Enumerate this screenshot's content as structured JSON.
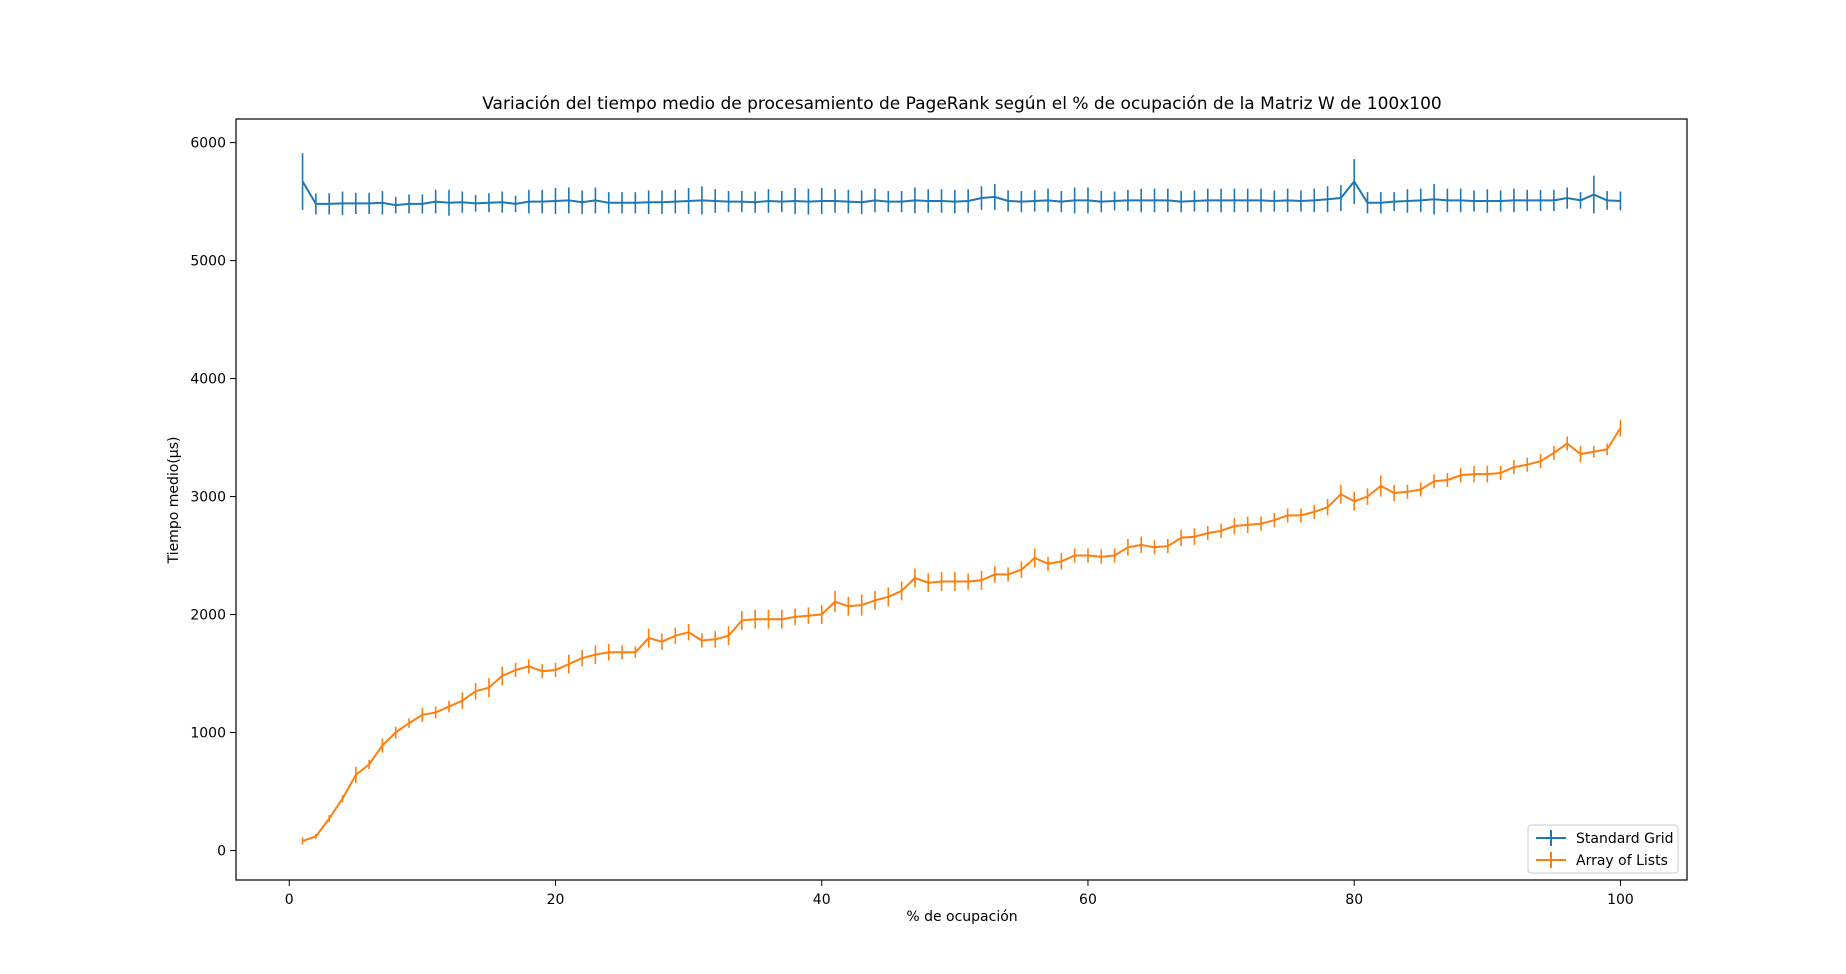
{
  "chart_data": {
    "type": "line",
    "title": "Variación del tiempo medio de procesamiento de PageRank según el % de ocupación de la Matriz W de 100x100",
    "xlabel": "% de ocupación",
    "ylabel": "Tiempo medio(μs)",
    "xlim": [
      -4,
      105
    ],
    "ylim": [
      -250,
      6200
    ],
    "xticks": [
      0,
      20,
      40,
      60,
      80,
      100
    ],
    "yticks": [
      0,
      1000,
      2000,
      3000,
      4000,
      5000,
      6000
    ],
    "grid": false,
    "legend_position": "lower-right",
    "x": [
      1,
      2,
      3,
      4,
      5,
      6,
      7,
      8,
      9,
      10,
      11,
      12,
      13,
      14,
      15,
      16,
      17,
      18,
      19,
      20,
      21,
      22,
      23,
      24,
      25,
      26,
      27,
      28,
      29,
      30,
      31,
      32,
      33,
      34,
      35,
      36,
      37,
      38,
      39,
      40,
      41,
      42,
      43,
      44,
      45,
      46,
      47,
      48,
      49,
      50,
      51,
      52,
      53,
      54,
      55,
      56,
      57,
      58,
      59,
      60,
      61,
      62,
      63,
      64,
      65,
      66,
      67,
      68,
      69,
      70,
      71,
      72,
      73,
      74,
      75,
      76,
      77,
      78,
      79,
      80,
      81,
      82,
      83,
      84,
      85,
      86,
      87,
      88,
      89,
      90,
      91,
      92,
      93,
      94,
      95,
      96,
      97,
      98,
      99,
      100
    ],
    "series": [
      {
        "name": "Standard Grid",
        "color": "#1f77b4",
        "values": [
          5670,
          5480,
          5480,
          5485,
          5485,
          5485,
          5490,
          5470,
          5480,
          5480,
          5500,
          5490,
          5495,
          5485,
          5490,
          5495,
          5480,
          5500,
          5500,
          5505,
          5510,
          5495,
          5510,
          5490,
          5490,
          5490,
          5495,
          5495,
          5500,
          5505,
          5510,
          5505,
          5500,
          5500,
          5495,
          5505,
          5500,
          5505,
          5500,
          5505,
          5505,
          5500,
          5495,
          5510,
          5500,
          5500,
          5510,
          5505,
          5505,
          5500,
          5505,
          5530,
          5540,
          5505,
          5500,
          5505,
          5510,
          5500,
          5510,
          5510,
          5500,
          5505,
          5510,
          5510,
          5510,
          5510,
          5500,
          5505,
          5510,
          5510,
          5510,
          5510,
          5510,
          5505,
          5510,
          5505,
          5510,
          5520,
          5530,
          5670,
          5490,
          5490,
          5500,
          5505,
          5510,
          5520,
          5510,
          5510,
          5505,
          5505,
          5505,
          5510,
          5510,
          5510,
          5510,
          5530,
          5510,
          5560,
          5510,
          5505
        ],
        "errors": [
          240,
          90,
          90,
          100,
          90,
          90,
          100,
          70,
          80,
          80,
          100,
          110,
          90,
          70,
          80,
          90,
          70,
          100,
          100,
          110,
          110,
          100,
          110,
          90,
          90,
          90,
          100,
          100,
          100,
          110,
          120,
          100,
          90,
          90,
          90,
          100,
          90,
          110,
          110,
          110,
          100,
          100,
          100,
          100,
          90,
          90,
          110,
          100,
          100,
          100,
          100,
          100,
          110,
          90,
          90,
          90,
          100,
          90,
          110,
          110,
          90,
          80,
          90,
          100,
          100,
          100,
          90,
          90,
          100,
          100,
          100,
          100,
          100,
          90,
          100,
          90,
          100,
          110,
          110,
          190,
          90,
          90,
          80,
          100,
          100,
          130,
          100,
          100,
          90,
          100,
          90,
          100,
          90,
          90,
          90,
          90,
          70,
          160,
          80,
          80
        ]
      },
      {
        "name": "Array of Lists",
        "color": "#ff7f0e",
        "values": [
          80,
          120,
          270,
          440,
          640,
          730,
          890,
          1000,
          1080,
          1150,
          1170,
          1220,
          1270,
          1350,
          1380,
          1480,
          1530,
          1560,
          1520,
          1530,
          1580,
          1630,
          1660,
          1680,
          1680,
          1680,
          1800,
          1770,
          1820,
          1850,
          1780,
          1790,
          1820,
          1950,
          1960,
          1960,
          1960,
          1980,
          1990,
          2000,
          2110,
          2070,
          2080,
          2120,
          2150,
          2200,
          2310,
          2270,
          2280,
          2280,
          2280,
          2290,
          2340,
          2340,
          2380,
          2480,
          2430,
          2450,
          2500,
          2500,
          2490,
          2500,
          2570,
          2590,
          2570,
          2580,
          2650,
          2660,
          2690,
          2710,
          2750,
          2760,
          2770,
          2800,
          2840,
          2840,
          2870,
          2910,
          3020,
          2960,
          3000,
          3090,
          3030,
          3040,
          3060,
          3130,
          3140,
          3180,
          3190,
          3190,
          3200,
          3250,
          3270,
          3300,
          3370,
          3450,
          3360,
          3380,
          3400,
          3580
        ],
        "errors": [
          30,
          20,
          30,
          30,
          70,
          40,
          60,
          50,
          40,
          60,
          50,
          50,
          70,
          70,
          80,
          80,
          60,
          60,
          60,
          60,
          80,
          70,
          80,
          70,
          60,
          50,
          80,
          70,
          70,
          70,
          60,
          70,
          80,
          80,
          80,
          80,
          80,
          70,
          70,
          80,
          90,
          80,
          90,
          80,
          80,
          80,
          80,
          80,
          80,
          80,
          70,
          80,
          70,
          60,
          70,
          80,
          60,
          70,
          60,
          60,
          60,
          60,
          70,
          70,
          60,
          60,
          70,
          70,
          60,
          60,
          70,
          70,
          60,
          60,
          60,
          60,
          60,
          70,
          80,
          80,
          70,
          90,
          70,
          60,
          60,
          60,
          60,
          60,
          70,
          70,
          60,
          60,
          60,
          60,
          60,
          60,
          70,
          50,
          50,
          70
        ]
      }
    ]
  }
}
